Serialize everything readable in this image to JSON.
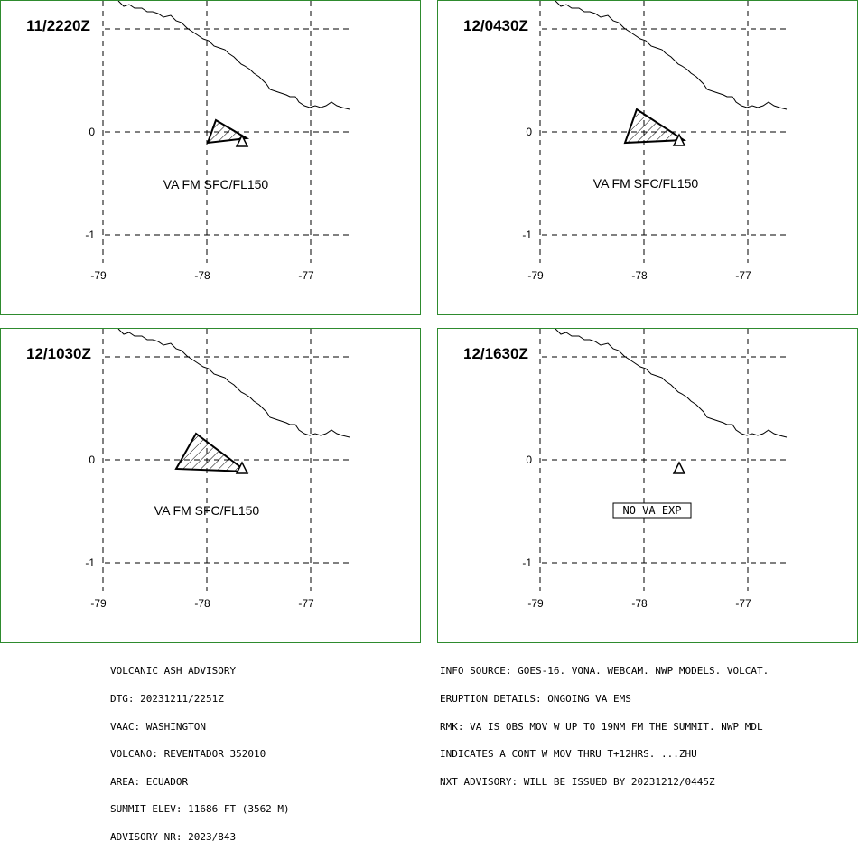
{
  "map_axes": {
    "lon_ticks": [
      "-79",
      "-78",
      "-77"
    ],
    "lat_ticks": [
      "0",
      "-1"
    ]
  },
  "panels": [
    {
      "time": "11/2220Z",
      "label": "VA FM SFC/FL150",
      "ash": true
    },
    {
      "time": "12/0430Z",
      "label": "VA FM SFC/FL150",
      "ash": true
    },
    {
      "time": "12/1030Z",
      "label": "VA FM SFC/FL150",
      "ash": true
    },
    {
      "time": "12/1630Z",
      "label": "NO VA EXP",
      "ash": false
    }
  ],
  "advisory_left": {
    "line1": "VOLCANIC ASH ADVISORY",
    "line2": "DTG: 20231211/2251Z",
    "line3": "VAAC: WASHINGTON",
    "line4": "VOLCANO: REVENTADOR 352010",
    "line5": "AREA: ECUADOR",
    "line6": "SUMMIT ELEV: 11686 FT (3562 M)",
    "line7": "ADVISORY NR: 2023/843"
  },
  "advisory_right": {
    "line1": "INFO SOURCE: GOES-16. VONA. WEBCAM. NWP MODELS. VOLCAT.",
    "line2": "ERUPTION DETAILS: ONGOING VA EMS",
    "line3": "RMK: VA IS OBS MOV W UP TO 19NM FM THE SUMMIT. NWP MDL",
    "line4": "INDICATES A CONT W MOV THRU T+12HRS. ...ZHU",
    "line5": "NXT ADVISORY: WILL BE ISSUED BY 20231212/0445Z"
  },
  "colors": {
    "panel_border": "#2e8b2e",
    "lines": "#000000",
    "background": "#ffffff"
  }
}
